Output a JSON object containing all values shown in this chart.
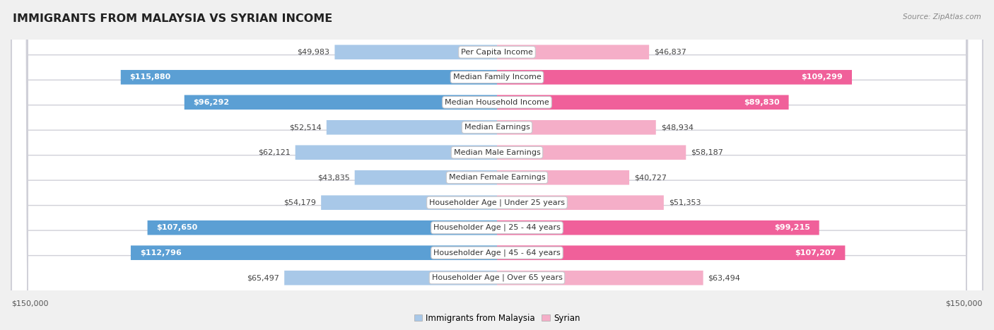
{
  "title": "IMMIGRANTS FROM MALAYSIA VS SYRIAN INCOME",
  "source": "Source: ZipAtlas.com",
  "categories": [
    "Per Capita Income",
    "Median Family Income",
    "Median Household Income",
    "Median Earnings",
    "Median Male Earnings",
    "Median Female Earnings",
    "Householder Age | Under 25 years",
    "Householder Age | 25 - 44 years",
    "Householder Age | 45 - 64 years",
    "Householder Age | Over 65 years"
  ],
  "malaysia_values": [
    49983,
    115880,
    96292,
    52514,
    62121,
    43835,
    54179,
    107650,
    112796,
    65497
  ],
  "syrian_values": [
    46837,
    109299,
    89830,
    48934,
    58187,
    40727,
    51353,
    99215,
    107207,
    63494
  ],
  "malaysia_color_light": "#a8c8e8",
  "malaysia_color_dark": "#5b9fd4",
  "syrian_color_light": "#f5aec8",
  "syrian_color_dark": "#f0609a",
  "large_threshold": 70000,
  "max_value": 150000,
  "background_color": "#f0f0f0",
  "row_bg_color": "#ffffff",
  "row_border_color": "#d0d0d8",
  "label_bg_color": "#ffffff",
  "title_fontsize": 11.5,
  "label_fontsize": 8,
  "value_fontsize": 8,
  "legend_fontsize": 8.5
}
